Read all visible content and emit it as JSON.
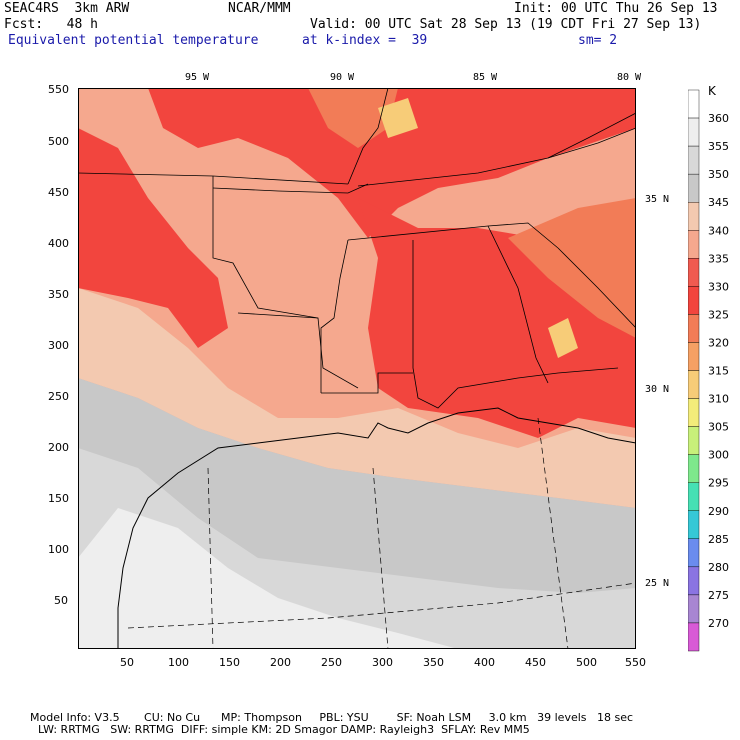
{
  "header": {
    "model": "SEAC4RS  3km ARW",
    "org": "NCAR/MMM",
    "init": "Init: 00 UTC Thu 26 Sep 13",
    "fcst": "Fcst:   48 h",
    "valid": "Valid: 00 UTC Sat 28 Sep 13 (19 CDT Fri 27 Sep 13)",
    "field": "Equivalent potential temperature",
    "level": "at k-index =  39",
    "smooth": "sm= 2"
  },
  "axes": {
    "x_ticks": [
      "50",
      "100",
      "150",
      "200",
      "250",
      "300",
      "350",
      "400",
      "450",
      "500",
      "550"
    ],
    "y_ticks": [
      "550",
      "500",
      "450",
      "400",
      "350",
      "300",
      "250",
      "200",
      "150",
      "100",
      "50"
    ],
    "lon_labels": [
      "95 W",
      "90 W",
      "85 W",
      "80 W"
    ],
    "lat_labels": [
      "35 N",
      "30 N",
      "25 N"
    ]
  },
  "colorbar": {
    "unit": "K",
    "levels": [
      "360",
      "355",
      "350",
      "345",
      "340",
      "335",
      "330",
      "325",
      "320",
      "315",
      "310",
      "305",
      "300",
      "295",
      "290",
      "285",
      "280",
      "275",
      "270"
    ],
    "colors": [
      "#ffffff",
      "#eeeeee",
      "#d8d8d8",
      "#c8c8c8",
      "#f3c9b0",
      "#f5a88e",
      "#f05a50",
      "#f2453e",
      "#f27c57",
      "#f5a064",
      "#f7cc78",
      "#f3ec7a",
      "#c8f07a",
      "#7ee88c",
      "#46e0b4",
      "#36c8d6",
      "#6a8cee",
      "#8a74e2",
      "#a886d2",
      "#d85ad6"
    ]
  },
  "footer": {
    "line1": "Model Info: V3.5       CU: No Cu      MP: Thompson     PBL: YSU        SF: Noah LSM     3.0 km   39 levels   18 sec",
    "line2": "LW: RRTMG   SW: RRTMG  DIFF: simple KM: 2D Smagor DAMP: Rayleigh3  SFLAY: Rev MM5"
  }
}
